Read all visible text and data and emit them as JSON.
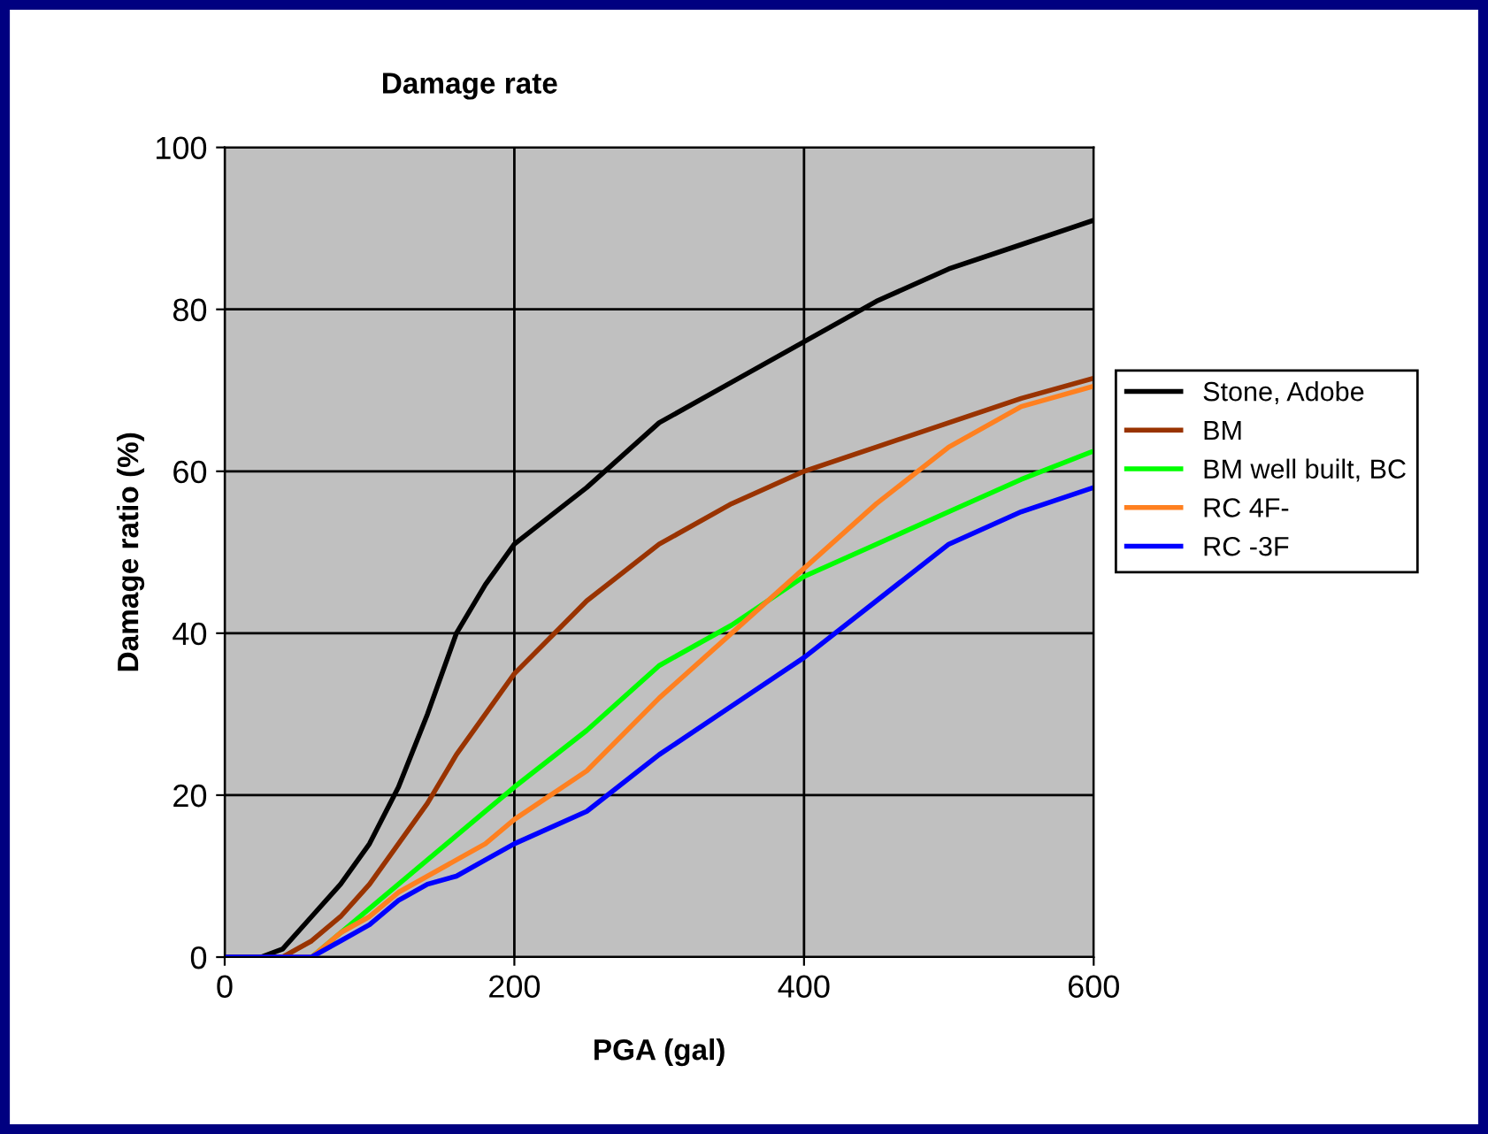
{
  "chart_data": {
    "type": "line",
    "title": "Damage rate",
    "xlabel": "PGA (gal)",
    "ylabel": "Damage ratio (%)",
    "x": [
      0,
      25,
      40,
      60,
      80,
      100,
      120,
      140,
      160,
      180,
      200,
      250,
      300,
      350,
      400,
      450,
      500,
      550,
      600
    ],
    "series": [
      {
        "name": "Stone, Adobe",
        "color": "#000000",
        "values": [
          0,
          0,
          1,
          5,
          9,
          14,
          21,
          30,
          40,
          46,
          51,
          58,
          66,
          71,
          76,
          81,
          85,
          88,
          91
        ]
      },
      {
        "name": "BM",
        "color": "#993300",
        "values": [
          0,
          0,
          0,
          2,
          5,
          9,
          14,
          19,
          25,
          30,
          35,
          44,
          51,
          56,
          60,
          63,
          66,
          69,
          71.5
        ]
      },
      {
        "name": "BM well built, BC",
        "color": "#00ff00",
        "values": [
          null,
          null,
          null,
          0,
          3,
          6,
          9,
          12,
          15,
          18,
          21,
          28,
          36,
          41,
          47,
          51,
          55,
          59,
          62.5
        ]
      },
      {
        "name": "RC 4F-",
        "color": "#ff8020",
        "values": [
          null,
          null,
          0,
          0,
          3,
          5,
          8,
          10,
          12,
          14,
          17,
          23,
          32,
          40,
          48,
          56,
          63,
          68,
          70.5
        ]
      },
      {
        "name": "RC -3F",
        "color": "#0000ff",
        "values": [
          0,
          0,
          0,
          0,
          2,
          4,
          7,
          9,
          10,
          12,
          14,
          18,
          25,
          31,
          37,
          44,
          51,
          55,
          58
        ]
      }
    ],
    "xlim": [
      0,
      600
    ],
    "ylim": [
      0,
      100
    ],
    "xticks": [
      0,
      200,
      400,
      600
    ],
    "yticks": [
      0,
      20,
      40,
      60,
      80,
      100
    ],
    "grid": true,
    "legend": "right",
    "marker": "none",
    "line_style": "solid"
  }
}
